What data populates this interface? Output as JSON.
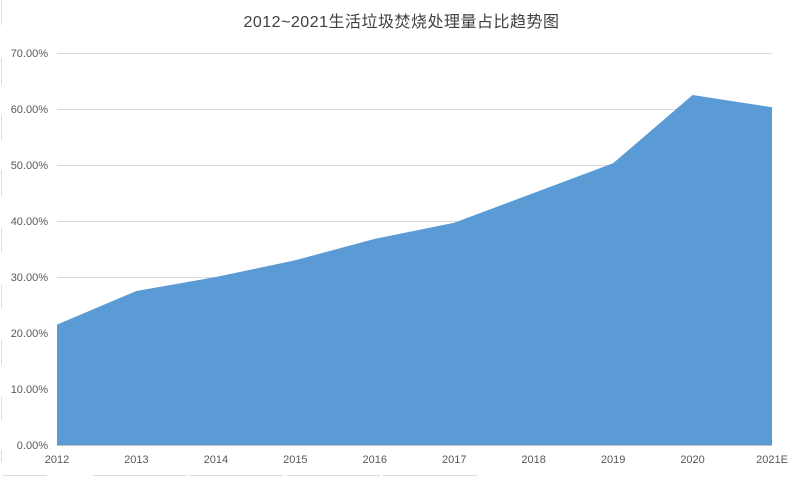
{
  "chart": {
    "title": "2012~2021生活垃圾焚烧处理量占比趋势图"
  },
  "chart_data": {
    "type": "area",
    "title": "2012~2021生活垃圾焚烧处理量占比趋势图",
    "categories": [
      "2012",
      "2013",
      "2014",
      "2015",
      "2016",
      "2017",
      "2018",
      "2019",
      "2020",
      "2021E"
    ],
    "values": [
      21.5,
      27.5,
      30.0,
      33.0,
      36.8,
      39.7,
      45.0,
      50.3,
      62.5,
      60.3
    ],
    "xlabel": "",
    "ylabel": "",
    "ylim": [
      0,
      70
    ],
    "y_tick_step": 10,
    "y_tick_labels": [
      "0.00%",
      "10.00%",
      "20.00%",
      "30.00%",
      "40.00%",
      "50.00%",
      "60.00%",
      "70.00%"
    ],
    "grid": true,
    "legend": false,
    "colors": {
      "area_fill": "#5b9bd5",
      "gridline": "#d9d9d9",
      "axis_line": "#bfbfbf",
      "axis_label": "#595959",
      "title": "#3f3f3f",
      "background": "#ffffff"
    }
  }
}
